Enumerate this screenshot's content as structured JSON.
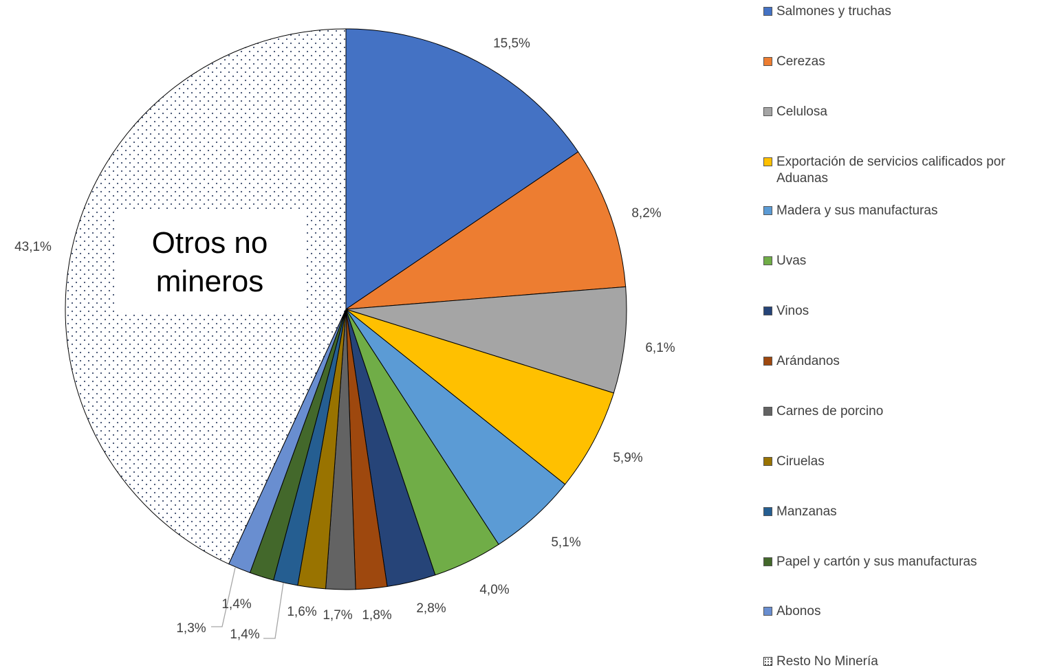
{
  "chart_data": {
    "type": "pie",
    "title": "",
    "start_angle_deg": 0,
    "direction": "clockwise",
    "center_label": [
      "Otros no",
      "mineros"
    ],
    "legend_position": "right",
    "slices": [
      {
        "name": "Salmones y truchas",
        "value": 15.5,
        "label": "15,5%",
        "color": "#4472C4"
      },
      {
        "name": "Cerezas",
        "value": 8.2,
        "label": "8,2%",
        "color": "#ED7D31"
      },
      {
        "name": "Celulosa",
        "value": 6.1,
        "label": "6,1%",
        "color": "#A5A5A5"
      },
      {
        "name": "Exportación de servicios calificados por Aduanas",
        "value": 5.9,
        "label": "5,9%",
        "color": "#FFC000"
      },
      {
        "name": "Madera y sus manufacturas",
        "value": 5.1,
        "label": "5,1%",
        "color": "#5B9BD5"
      },
      {
        "name": "Uvas",
        "value": 4.0,
        "label": "4,0%",
        "color": "#70AD47"
      },
      {
        "name": "Vinos",
        "value": 2.8,
        "label": "2,8%",
        "color": "#264478"
      },
      {
        "name": "Arándanos",
        "value": 1.8,
        "label": "1,8%",
        "color": "#9E480E"
      },
      {
        "name": "Carnes de porcino",
        "value": 1.7,
        "label": "1,7%",
        "color": "#636363"
      },
      {
        "name": "Ciruelas",
        "value": 1.6,
        "label": "1,6%",
        "color": "#997300"
      },
      {
        "name": "Manzanas",
        "value": 1.4,
        "label": "1,4%",
        "color": "#255E91"
      },
      {
        "name": "Papel y cartón y sus manufacturas",
        "value": 1.4,
        "label": "1,4%",
        "color": "#43682B"
      },
      {
        "name": "Abonos",
        "value": 1.3,
        "label": "1,3%",
        "color": "#698ED0"
      },
      {
        "name": "Resto No Minería",
        "value": 43.1,
        "label": "43,1%",
        "color": "#FFFFFF",
        "pattern": "dotted"
      }
    ]
  }
}
